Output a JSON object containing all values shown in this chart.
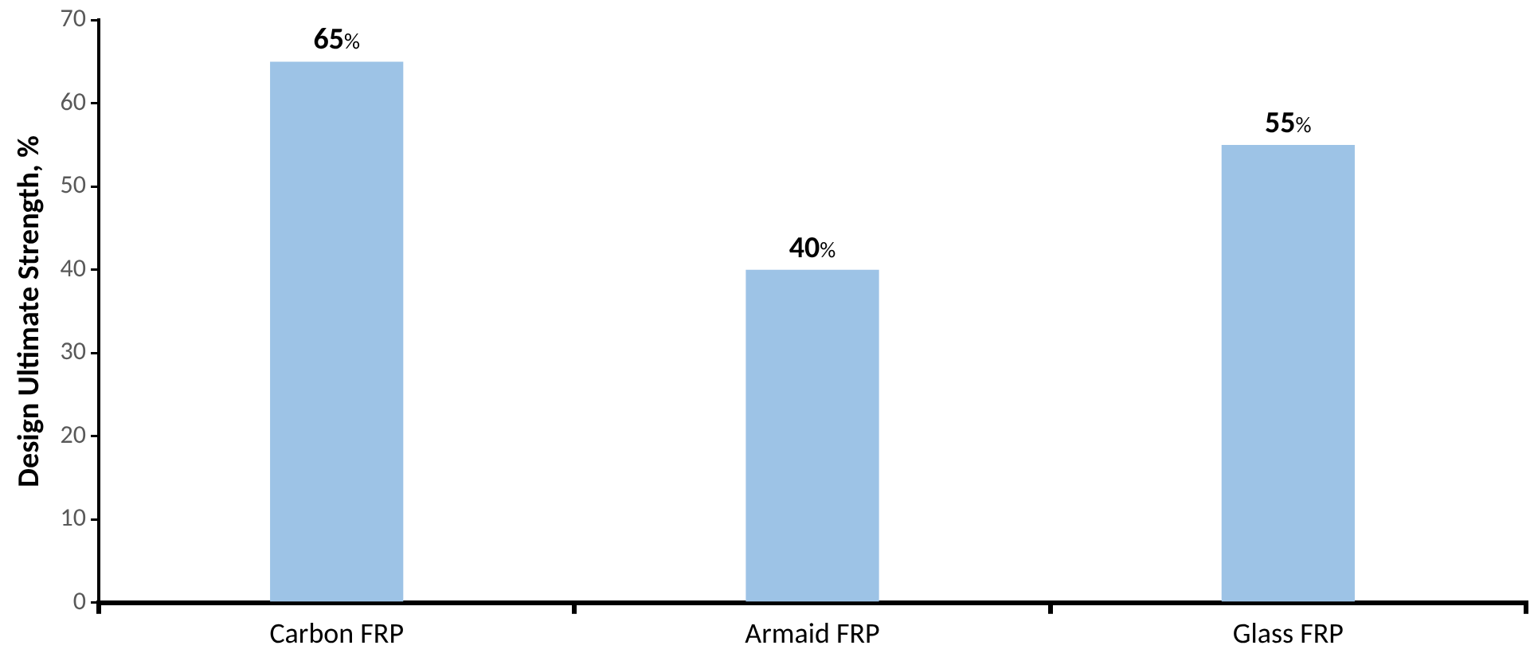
{
  "chart_data": {
    "type": "bar",
    "ylabel": "Design Ultimate Strength, %",
    "categories": [
      "Carbon FRP",
      "Armaid FRP",
      "Glass FRP"
    ],
    "values": [
      65,
      40,
      55
    ],
    "color": "#9dc3e6",
    "value_labels": [
      "65%",
      "40%",
      "55%"
    ],
    "ylim": [
      0,
      70
    ],
    "yticks": [
      0,
      10,
      20,
      30,
      40,
      50,
      60,
      70
    ],
    "grid": false,
    "legend": false
  }
}
